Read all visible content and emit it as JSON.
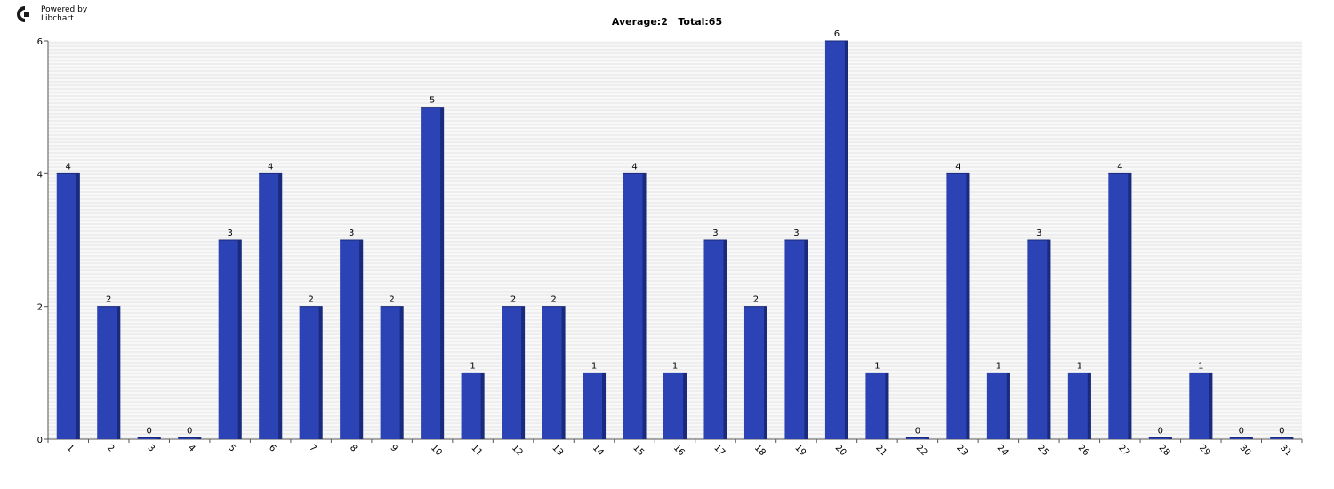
{
  "branding": {
    "powered_by": "Powered by",
    "name": "Libchart",
    "logo_icon": "libchart-logo-icon"
  },
  "colors": {
    "bar": "#2b43b5",
    "bar_shade": "#1a2a7c",
    "grid_line": "#e4e4e4",
    "background": "#f8f8f8"
  },
  "chart_data": {
    "type": "bar",
    "title": "Average:2   Total:65",
    "xlabel": "",
    "ylabel": "",
    "ylim": [
      0,
      6
    ],
    "yticks": [
      0,
      2,
      4,
      6
    ],
    "grid": true,
    "categories": [
      "1",
      "2",
      "3",
      "4",
      "5",
      "6",
      "7",
      "8",
      "9",
      "10",
      "11",
      "12",
      "13",
      "14",
      "15",
      "16",
      "17",
      "18",
      "19",
      "20",
      "21",
      "22",
      "23",
      "24",
      "25",
      "26",
      "27",
      "28",
      "29",
      "30",
      "31"
    ],
    "values": [
      4,
      2,
      0,
      0,
      3,
      4,
      2,
      3,
      2,
      5,
      1,
      2,
      2,
      1,
      4,
      1,
      3,
      2,
      3,
      6,
      1,
      0,
      4,
      1,
      3,
      1,
      4,
      0,
      1,
      0,
      0
    ],
    "data_labels": true
  }
}
